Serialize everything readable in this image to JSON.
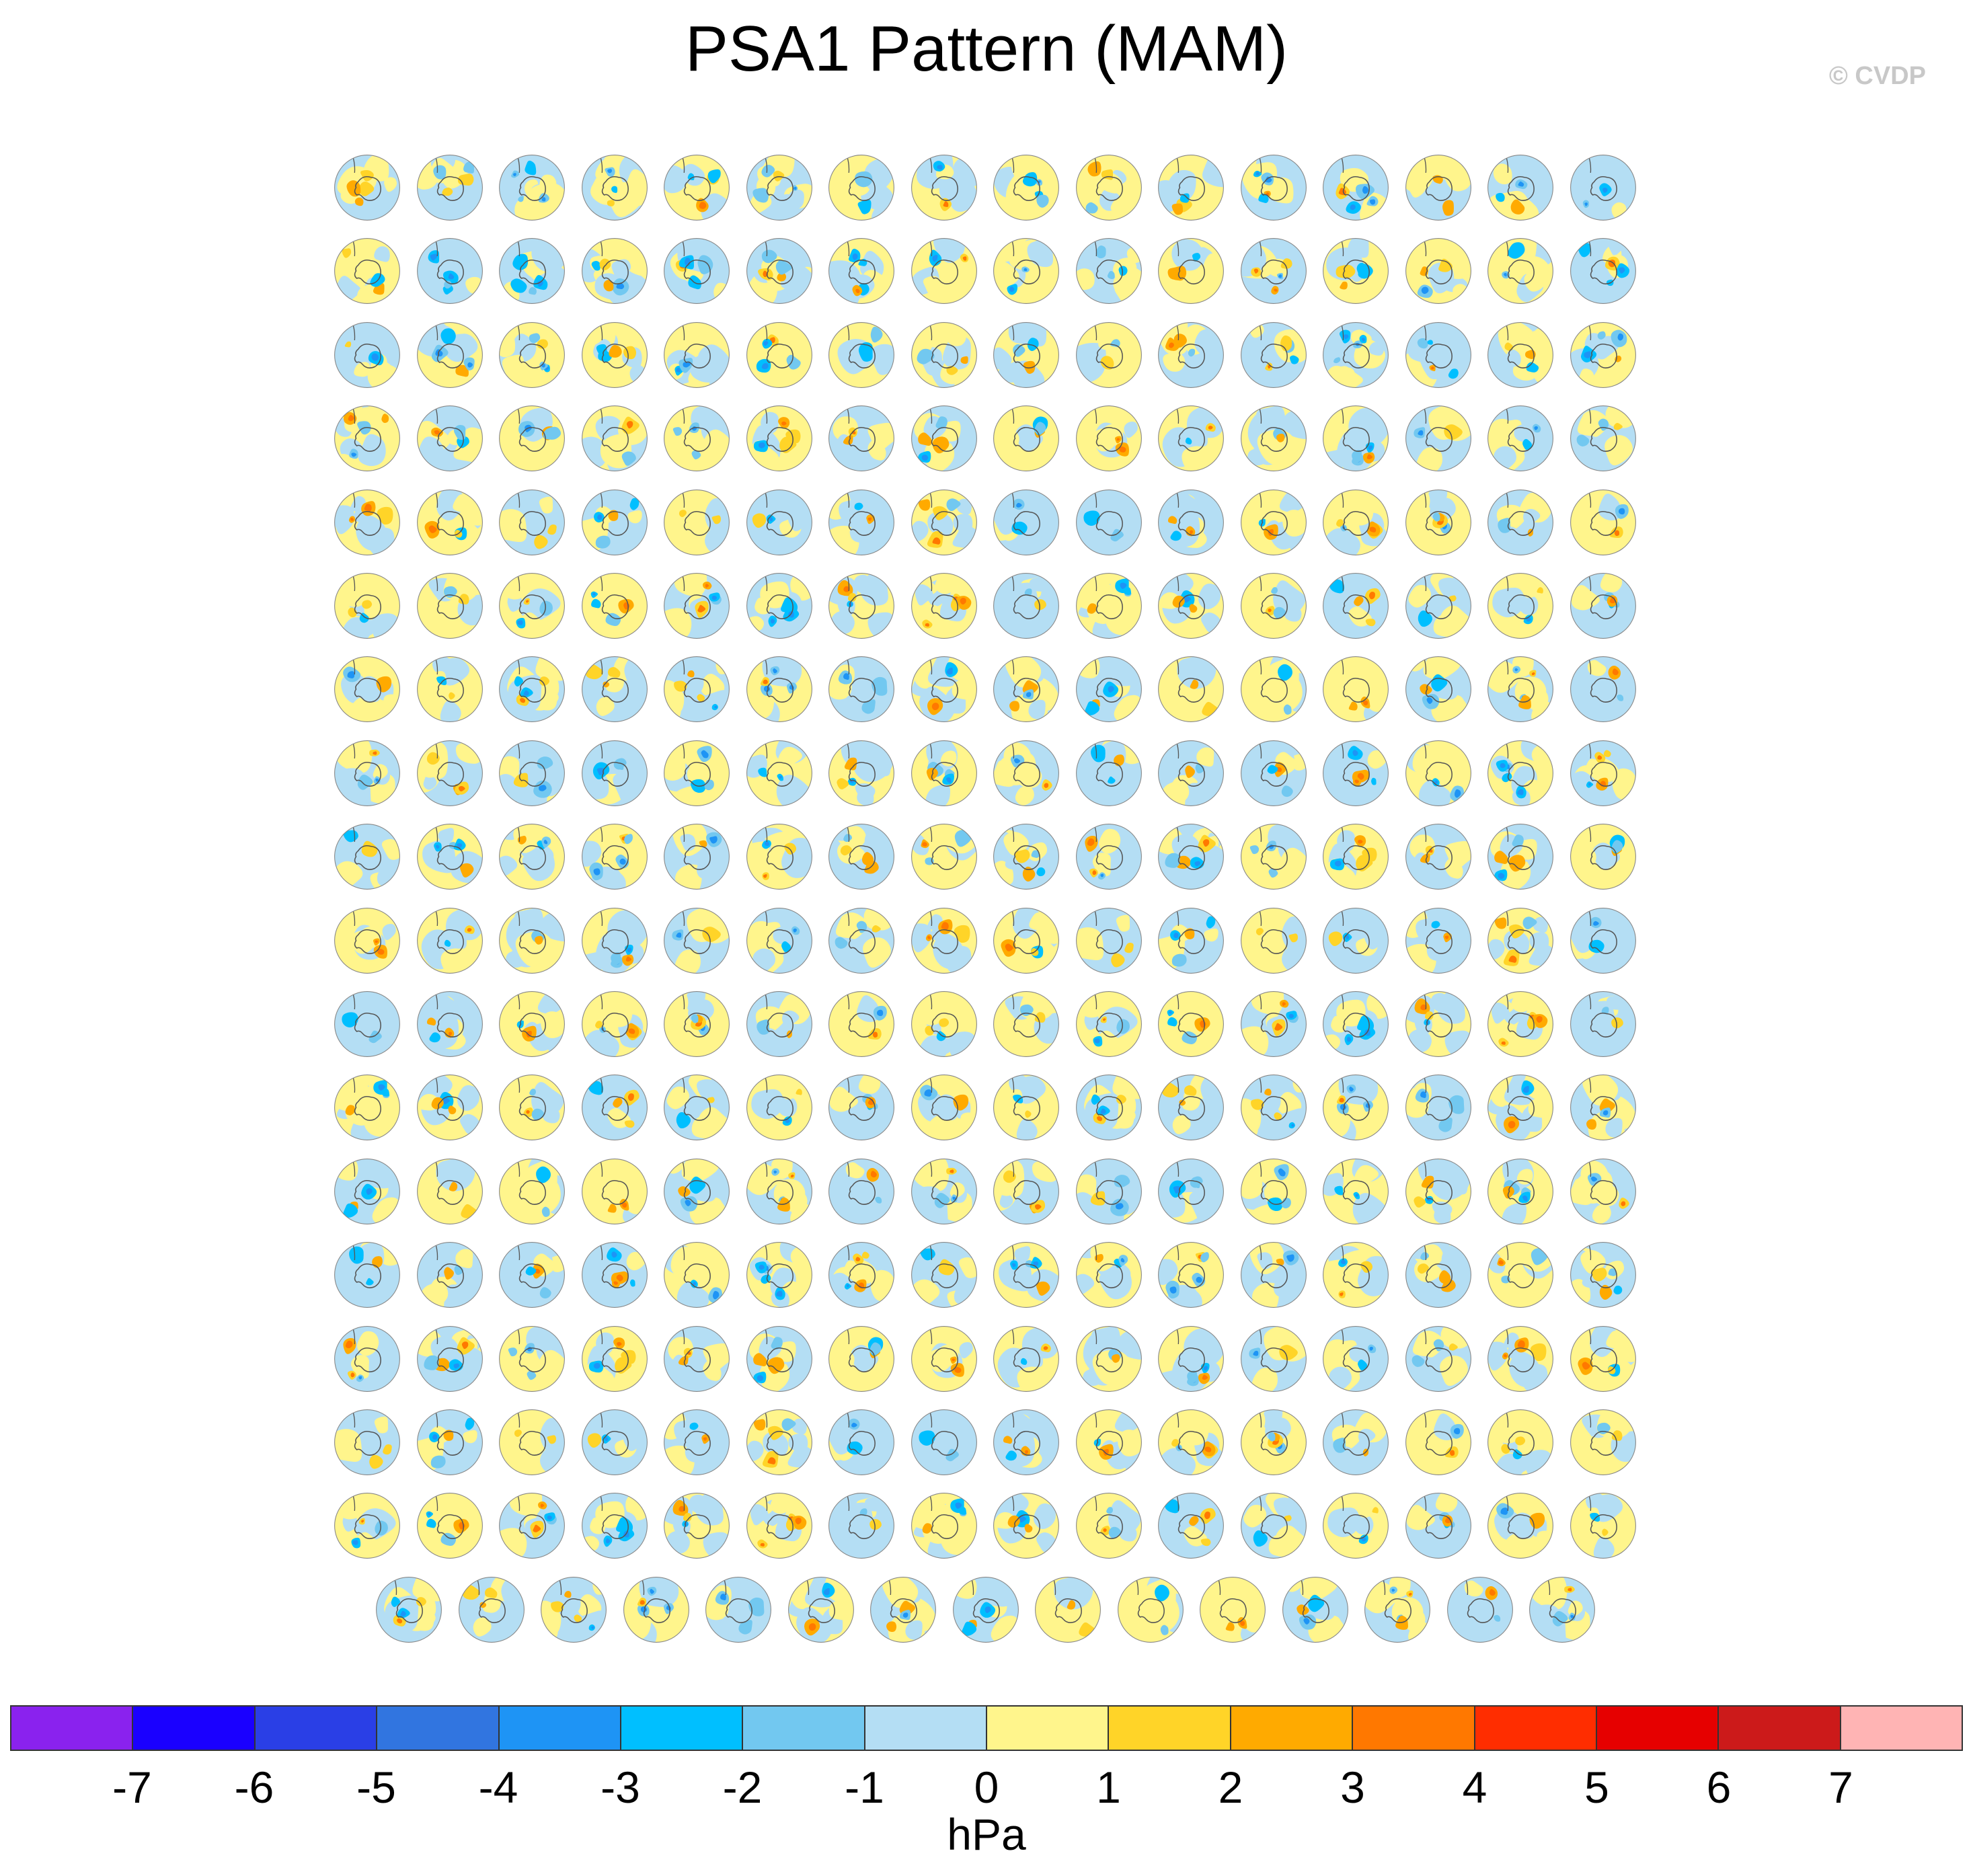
{
  "chart_data": {
    "type": "heatmap",
    "title": "PSA1 Pattern (MAM)",
    "units_label": "hPa",
    "copyright": "© CVDP",
    "panel_rows": 18,
    "panels_per_full_row": 16,
    "panels_in_last_row": 15,
    "total_panels": 287,
    "colorbar": {
      "tick_labels": [
        "-7",
        "-6",
        "-5",
        "-4",
        "-3",
        "-2",
        "-1",
        "0",
        "1",
        "2",
        "3",
        "4",
        "5",
        "6",
        "7"
      ],
      "colors": [
        "#8a22ee",
        "#1a00ff",
        "#2a3fe6",
        "#3175e0",
        "#1e94f5",
        "#00bfff",
        "#72c8f0",
        "#b4def4",
        "#fff58c",
        "#ffd428",
        "#ffaa00",
        "#ff7800",
        "#ff2d00",
        "#e60000",
        "#cc1a1a",
        "#ffb4b4"
      ]
    },
    "map_colors": {
      "land_outline": "#555555",
      "frame": "#888888"
    }
  }
}
